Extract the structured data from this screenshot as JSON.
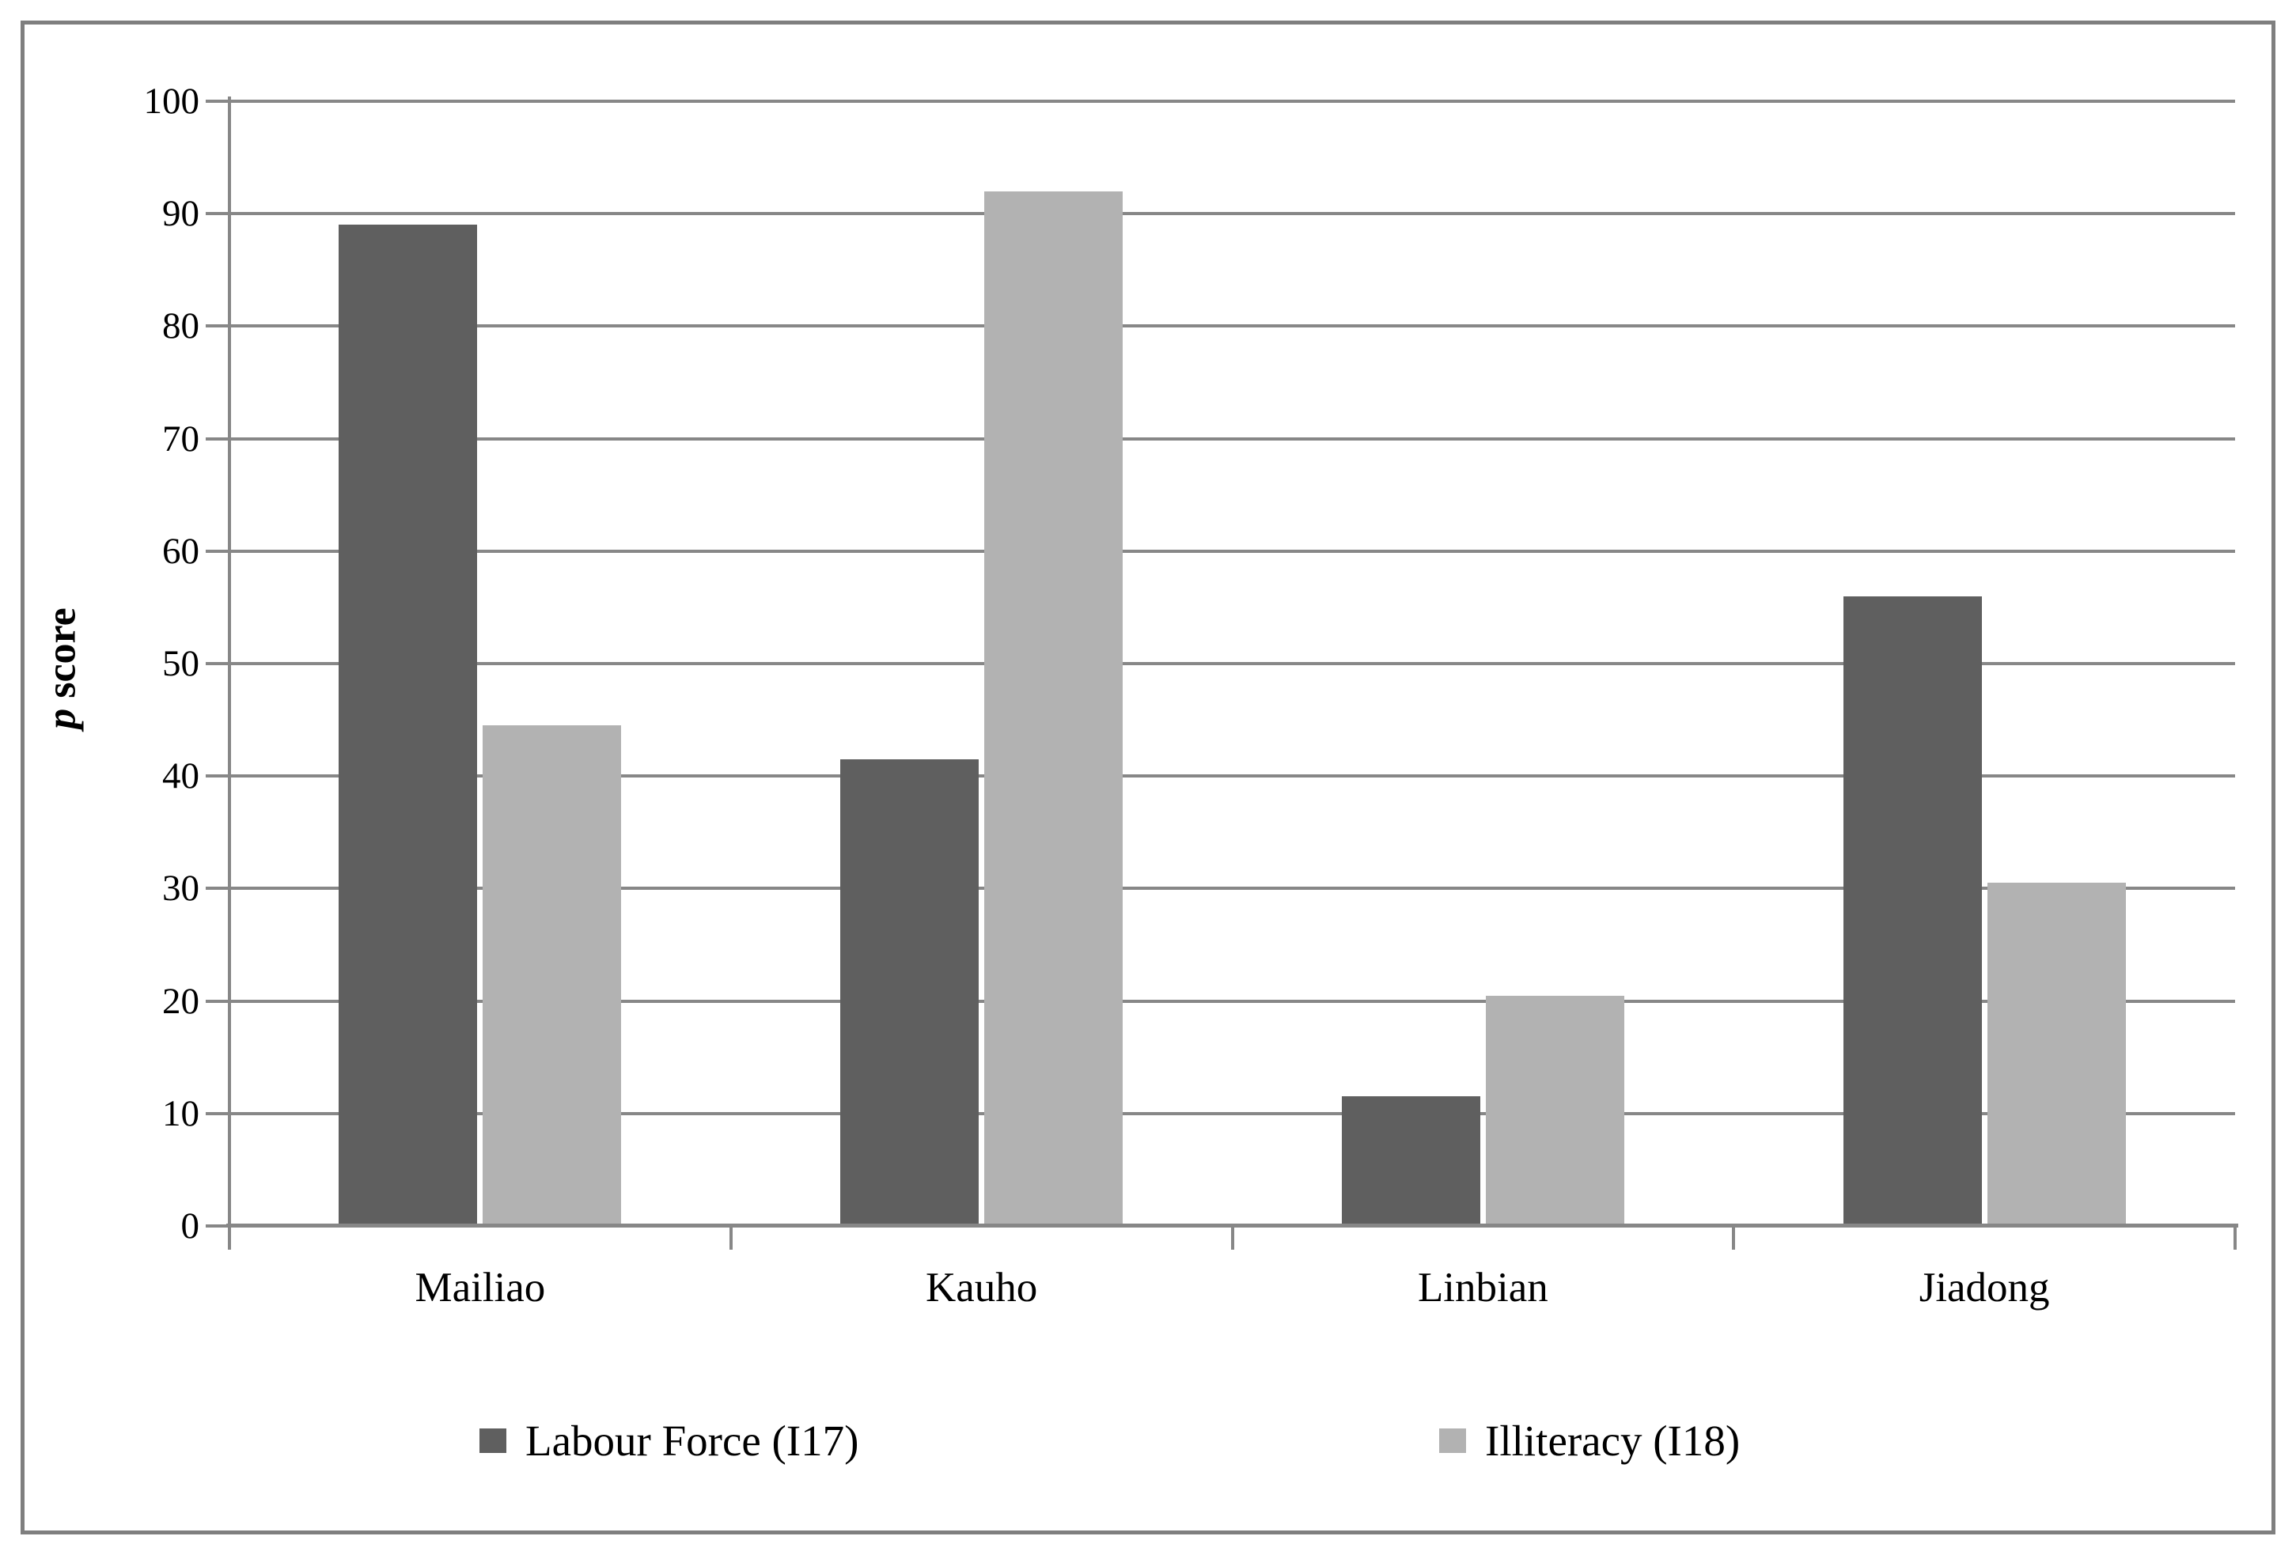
{
  "chart_data": {
    "type": "bar",
    "title": "",
    "categories": [
      "Mailiao",
      "Kauho",
      "Linbian",
      "Jiadong"
    ],
    "series": [
      {
        "name": "Labour Force (I17)",
        "color": "#5f5f5f",
        "values": [
          89,
          41.5,
          11.5,
          56
        ]
      },
      {
        "name": "Illiteracy (I18)",
        "color": "#b2b2b2",
        "values": [
          44.5,
          92,
          20.5,
          30.5
        ]
      }
    ],
    "xlabel": "",
    "ylabel": "p score",
    "ylabel_parts": {
      "italic": "p",
      "regular": " score"
    },
    "ylim": [
      0,
      100
    ],
    "yticks": [
      0,
      10,
      20,
      30,
      40,
      50,
      60,
      70,
      80,
      90,
      100
    ],
    "grid": "horizontal",
    "legend_position": "bottom",
    "colors": {
      "gridline": "#878787",
      "axis": "#878787",
      "frame": "#7f7f7f",
      "text": "#000000",
      "background": "#ffffff"
    }
  }
}
